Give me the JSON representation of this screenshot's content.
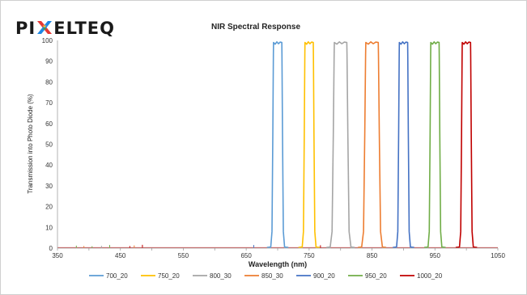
{
  "logo": {
    "before": "PI",
    "after": "ELTEQ",
    "mark_colors": [
      "#e53935",
      "#fbc02d",
      "#1e88e5",
      "#43a047"
    ]
  },
  "chart_data": {
    "type": "line",
    "title": "NIR Spectral Response",
    "xlabel": "Wavelength (nm)",
    "ylabel": "Transmission into Photo Diode (%)",
    "xlim": [
      350,
      1050
    ],
    "ylim": [
      0,
      100
    ],
    "xticks": [
      350,
      450,
      550,
      650,
      750,
      850,
      950,
      1050
    ],
    "yticks": [
      0,
      10,
      20,
      30,
      40,
      50,
      60,
      70,
      80,
      90,
      100
    ],
    "grid": false,
    "legend_position": "bottom",
    "series": [
      {
        "name": "700_20",
        "color": "#5b9bd5",
        "center": 700,
        "width": 20,
        "peak": 99
      },
      {
        "name": "750_20",
        "color": "#ffc000",
        "center": 750,
        "width": 20,
        "peak": 99
      },
      {
        "name": "800_30",
        "color": "#a5a5a5",
        "center": 800,
        "width": 30,
        "peak": 99
      },
      {
        "name": "850_30",
        "color": "#ed7d31",
        "center": 850,
        "width": 30,
        "peak": 99
      },
      {
        "name": "900_20",
        "color": "#4472c4",
        "center": 900,
        "width": 20,
        "peak": 99
      },
      {
        "name": "950_20",
        "color": "#70ad47",
        "center": 950,
        "width": 20,
        "peak": 99
      },
      {
        "name": "1000_20",
        "color": "#c00000",
        "center": 1000,
        "width": 20,
        "peak": 99
      }
    ],
    "noise_spikes": [
      {
        "x": 380,
        "y": 1.2,
        "color": "#70ad47"
      },
      {
        "x": 392,
        "y": 1.0,
        "color": "#ed7d31"
      },
      {
        "x": 405,
        "y": 0.9,
        "color": "#70ad47"
      },
      {
        "x": 420,
        "y": 1.1,
        "color": "#a5a5a5"
      },
      {
        "x": 433,
        "y": 1.5,
        "color": "#70ad47"
      },
      {
        "x": 465,
        "y": 1.0,
        "color": "#c00000"
      },
      {
        "x": 472,
        "y": 1.3,
        "color": "#ed7d31"
      },
      {
        "x": 485,
        "y": 1.6,
        "color": "#c00000"
      },
      {
        "x": 662,
        "y": 1.5,
        "color": "#4472c4"
      },
      {
        "x": 768,
        "y": 1.4,
        "color": "#c00000"
      }
    ]
  }
}
